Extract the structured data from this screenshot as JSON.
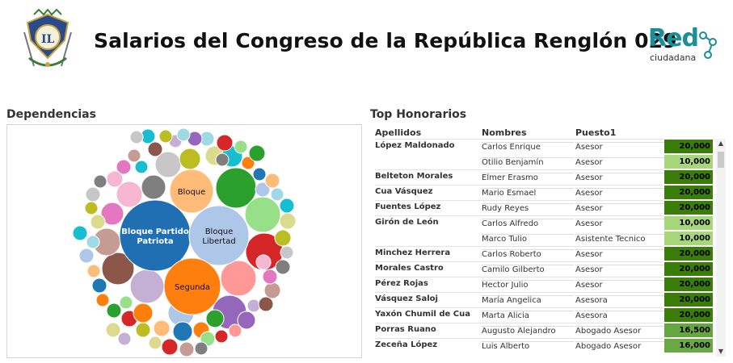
{
  "header": {
    "title": "Salarios del Congreso de la República Renglón 029",
    "brand_main": "Red",
    "brand_sub": "ciudadana"
  },
  "dependencias": {
    "title": "Dependencias",
    "labeled_bubbles": [
      {
        "label_lines": [
          "Bloque Partido",
          "Patriota"
        ],
        "color": "#1f6fb2"
      },
      {
        "label_lines": [
          "Bloque",
          "Libertad"
        ],
        "color": "#aec7e8"
      },
      {
        "label_lines": [
          "Segunda"
        ],
        "color": "#ff7f0e"
      },
      {
        "label_lines": [
          "Bloque"
        ],
        "color": "#ffbb78"
      }
    ]
  },
  "top": {
    "title": "Top Honorarios",
    "columns": [
      "Apellidos",
      "Nombres",
      "Puesto1"
    ],
    "rows": [
      {
        "apellidos": "López Maldonado",
        "nombres": "Carlos Enrique",
        "puesto": "Asesor",
        "monto": "20,000"
      },
      {
        "apellidos": "",
        "nombres": "Otilio Benjamín",
        "puesto": "Asesor",
        "monto": "10,000"
      },
      {
        "apellidos": "Belteton Morales",
        "nombres": "Elmer Erasmo",
        "puesto": "Asesor",
        "monto": "20,000"
      },
      {
        "apellidos": "Cua Vásquez",
        "nombres": "Mario Esmael",
        "puesto": "Asesor",
        "monto": "20,000"
      },
      {
        "apellidos": "Fuentes López",
        "nombres": "Rudy Reyes",
        "puesto": "Asesor",
        "monto": "20,000"
      },
      {
        "apellidos": "Girón de León",
        "nombres": "Carlos Alfredo",
        "puesto": "Asesor",
        "monto": "10,000"
      },
      {
        "apellidos": "",
        "nombres": "Marco Tulio",
        "puesto": "Asistente Tecnico",
        "monto": "10,000"
      },
      {
        "apellidos": "Minchez Herrera",
        "nombres": "Carlos Roberto",
        "puesto": "Asesor",
        "monto": "20,000"
      },
      {
        "apellidos": "Morales Castro",
        "nombres": "Camilo Gilberto",
        "puesto": "Asesor",
        "monto": "20,000"
      },
      {
        "apellidos": "Pérez Rojas",
        "nombres": "Hector Julio",
        "puesto": "Asesor",
        "monto": "20,000"
      },
      {
        "apellidos": "Vásquez Saloj",
        "nombres": "María Angelica",
        "puesto": "Asesora",
        "monto": "20,000"
      },
      {
        "apellidos": "Yaxón Chumil de Cua",
        "nombres": "Marta Alicia",
        "puesto": "Asesora",
        "monto": "20,000"
      },
      {
        "apellidos": "Porras Ruano",
        "nombres": "Augusto Alejandro",
        "puesto": "Abogado Asesor",
        "monto": "16,500"
      },
      {
        "apellidos": "Zeceña López",
        "nombres": "Luis Alberto",
        "puesto": "Abogado Asesor",
        "monto": "16,000"
      }
    ],
    "scale_colors": {
      "20000": "#3a7d0a",
      "16500": "#66a640",
      "16000": "#6aa843",
      "10000": "#a7d77a"
    }
  }
}
